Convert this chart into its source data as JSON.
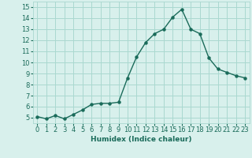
{
  "x": [
    0,
    1,
    2,
    3,
    4,
    5,
    6,
    7,
    8,
    9,
    10,
    11,
    12,
    13,
    14,
    15,
    16,
    17,
    18,
    19,
    20,
    21,
    22,
    23
  ],
  "y": [
    5.1,
    4.9,
    5.2,
    4.9,
    5.3,
    5.7,
    6.2,
    6.3,
    6.3,
    6.4,
    8.6,
    10.5,
    11.8,
    12.6,
    13.0,
    14.1,
    14.8,
    13.0,
    12.6,
    10.4,
    9.4,
    9.1,
    8.8,
    8.6
  ],
  "line_color": "#1a6b5a",
  "marker": "o",
  "marker_size": 2.2,
  "bg_color": "#d8f0ec",
  "grid_color": "#aad8d0",
  "xlabel": "Humidex (Indice chaleur)",
  "xlim": [
    -0.5,
    23.5
  ],
  "ylim": [
    4.5,
    15.5
  ],
  "yticks": [
    5,
    6,
    7,
    8,
    9,
    10,
    11,
    12,
    13,
    14,
    15
  ],
  "xticks": [
    0,
    1,
    2,
    3,
    4,
    5,
    6,
    7,
    8,
    9,
    10,
    11,
    12,
    13,
    14,
    15,
    16,
    17,
    18,
    19,
    20,
    21,
    22,
    23
  ],
  "xlabel_fontsize": 6.5,
  "tick_fontsize": 6.0,
  "line_width": 1.0
}
